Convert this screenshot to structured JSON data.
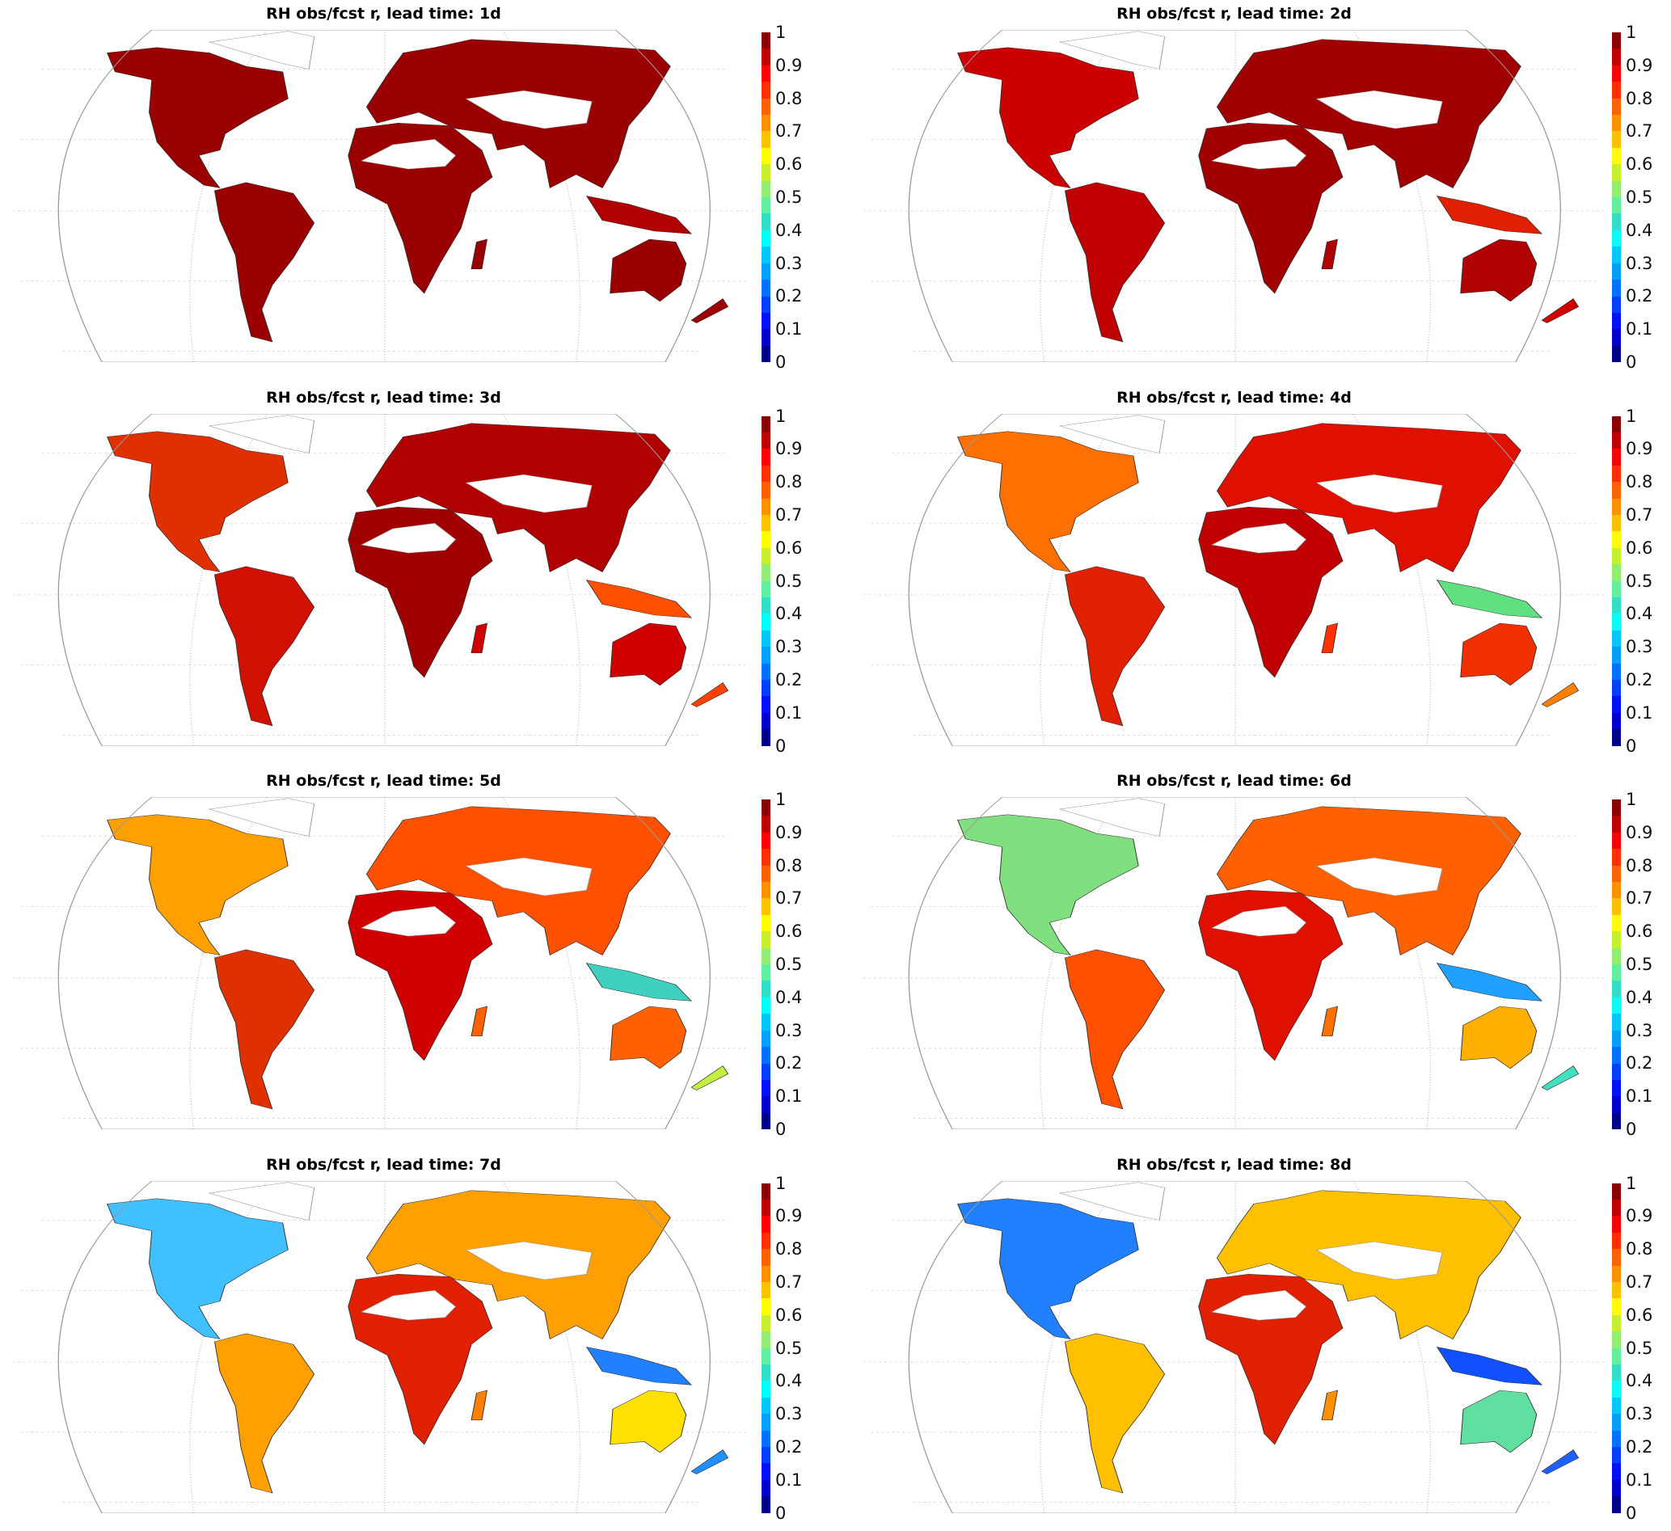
{
  "figure": {
    "panels": [
      {
        "title": "RH obs/fcst r, lead time: 1d",
        "colors": {
          "north_america": "#9a0000",
          "south_america": "#9a0000",
          "eurasia": "#9a0000",
          "africa": "#9a0000",
          "australia": "#9a0000",
          "indonesia": "#b00000",
          "new_zealand": "#a00000",
          "madagascar": "#9a0000"
        }
      },
      {
        "title": "RH obs/fcst r, lead time: 2d",
        "colors": {
          "north_america": "#cc0000",
          "south_america": "#c00000",
          "eurasia": "#a00000",
          "africa": "#a00000",
          "australia": "#b00000",
          "indonesia": "#e02000",
          "new_zealand": "#d00000",
          "madagascar": "#b00000"
        }
      },
      {
        "title": "RH obs/fcst r, lead time: 3d",
        "colors": {
          "north_america": "#e03000",
          "south_america": "#d01000",
          "eurasia": "#b00000",
          "africa": "#a00000",
          "australia": "#d00000",
          "indonesia": "#ff5000",
          "new_zealand": "#ff4000",
          "madagascar": "#d00000"
        }
      },
      {
        "title": "RH obs/fcst r, lead time: 4d",
        "colors": {
          "north_america": "#ff7000",
          "south_america": "#e02000",
          "eurasia": "#e01000",
          "africa": "#c00000",
          "australia": "#f03000",
          "indonesia": "#60e080",
          "new_zealand": "#ff8000",
          "madagascar": "#ff3000"
        }
      },
      {
        "title": "RH obs/fcst r, lead time: 5d",
        "colors": {
          "north_america": "#ffa000",
          "south_america": "#e03000",
          "eurasia": "#ff5000",
          "africa": "#d00000",
          "australia": "#ff6000",
          "indonesia": "#40d0c0",
          "new_zealand": "#c0f040",
          "madagascar": "#ff6000"
        }
      },
      {
        "title": "RH obs/fcst r, lead time: 6d",
        "colors": {
          "north_america": "#80e080",
          "south_america": "#ff5000",
          "eurasia": "#ff6000",
          "africa": "#e01000",
          "australia": "#ffb000",
          "indonesia": "#20a0ff",
          "new_zealand": "#40e0c0",
          "madagascar": "#ff7000"
        }
      },
      {
        "title": "RH obs/fcst r, lead time: 7d",
        "colors": {
          "north_america": "#40c0ff",
          "south_america": "#ffa000",
          "eurasia": "#ffa000",
          "africa": "#e02000",
          "australia": "#ffe000",
          "indonesia": "#2080ff",
          "new_zealand": "#2090ff",
          "madagascar": "#ff8000"
        }
      },
      {
        "title": "RH obs/fcst r, lead time: 8d",
        "colors": {
          "north_america": "#2080ff",
          "south_america": "#ffc000",
          "eurasia": "#ffc000",
          "africa": "#e02000",
          "australia": "#60e0a0",
          "indonesia": "#1050ff",
          "new_zealand": "#2060ff",
          "madagascar": "#ff9000"
        }
      }
    ],
    "colorbar": {
      "range": [
        0,
        1
      ],
      "ticks": [
        "1",
        "0.9",
        "0.8",
        "0.7",
        "0.6",
        "0.5",
        "0.4",
        "0.3",
        "0.2",
        "0.1",
        "0"
      ],
      "levels_top_to_bottom": [
        "#8b0000",
        "#c00000",
        "#ff0000",
        "#ff3000",
        "#ff6000",
        "#ff9000",
        "#ffc000",
        "#ffff00",
        "#c8ee30",
        "#90ee70",
        "#60f0a0",
        "#30e0c8",
        "#00ffff",
        "#00c8ff",
        "#00a0ff",
        "#0070ff",
        "#0040ff",
        "#0010ff",
        "#0000d0",
        "#00008b"
      ]
    },
    "land_mask_color": "#ffffff"
  }
}
